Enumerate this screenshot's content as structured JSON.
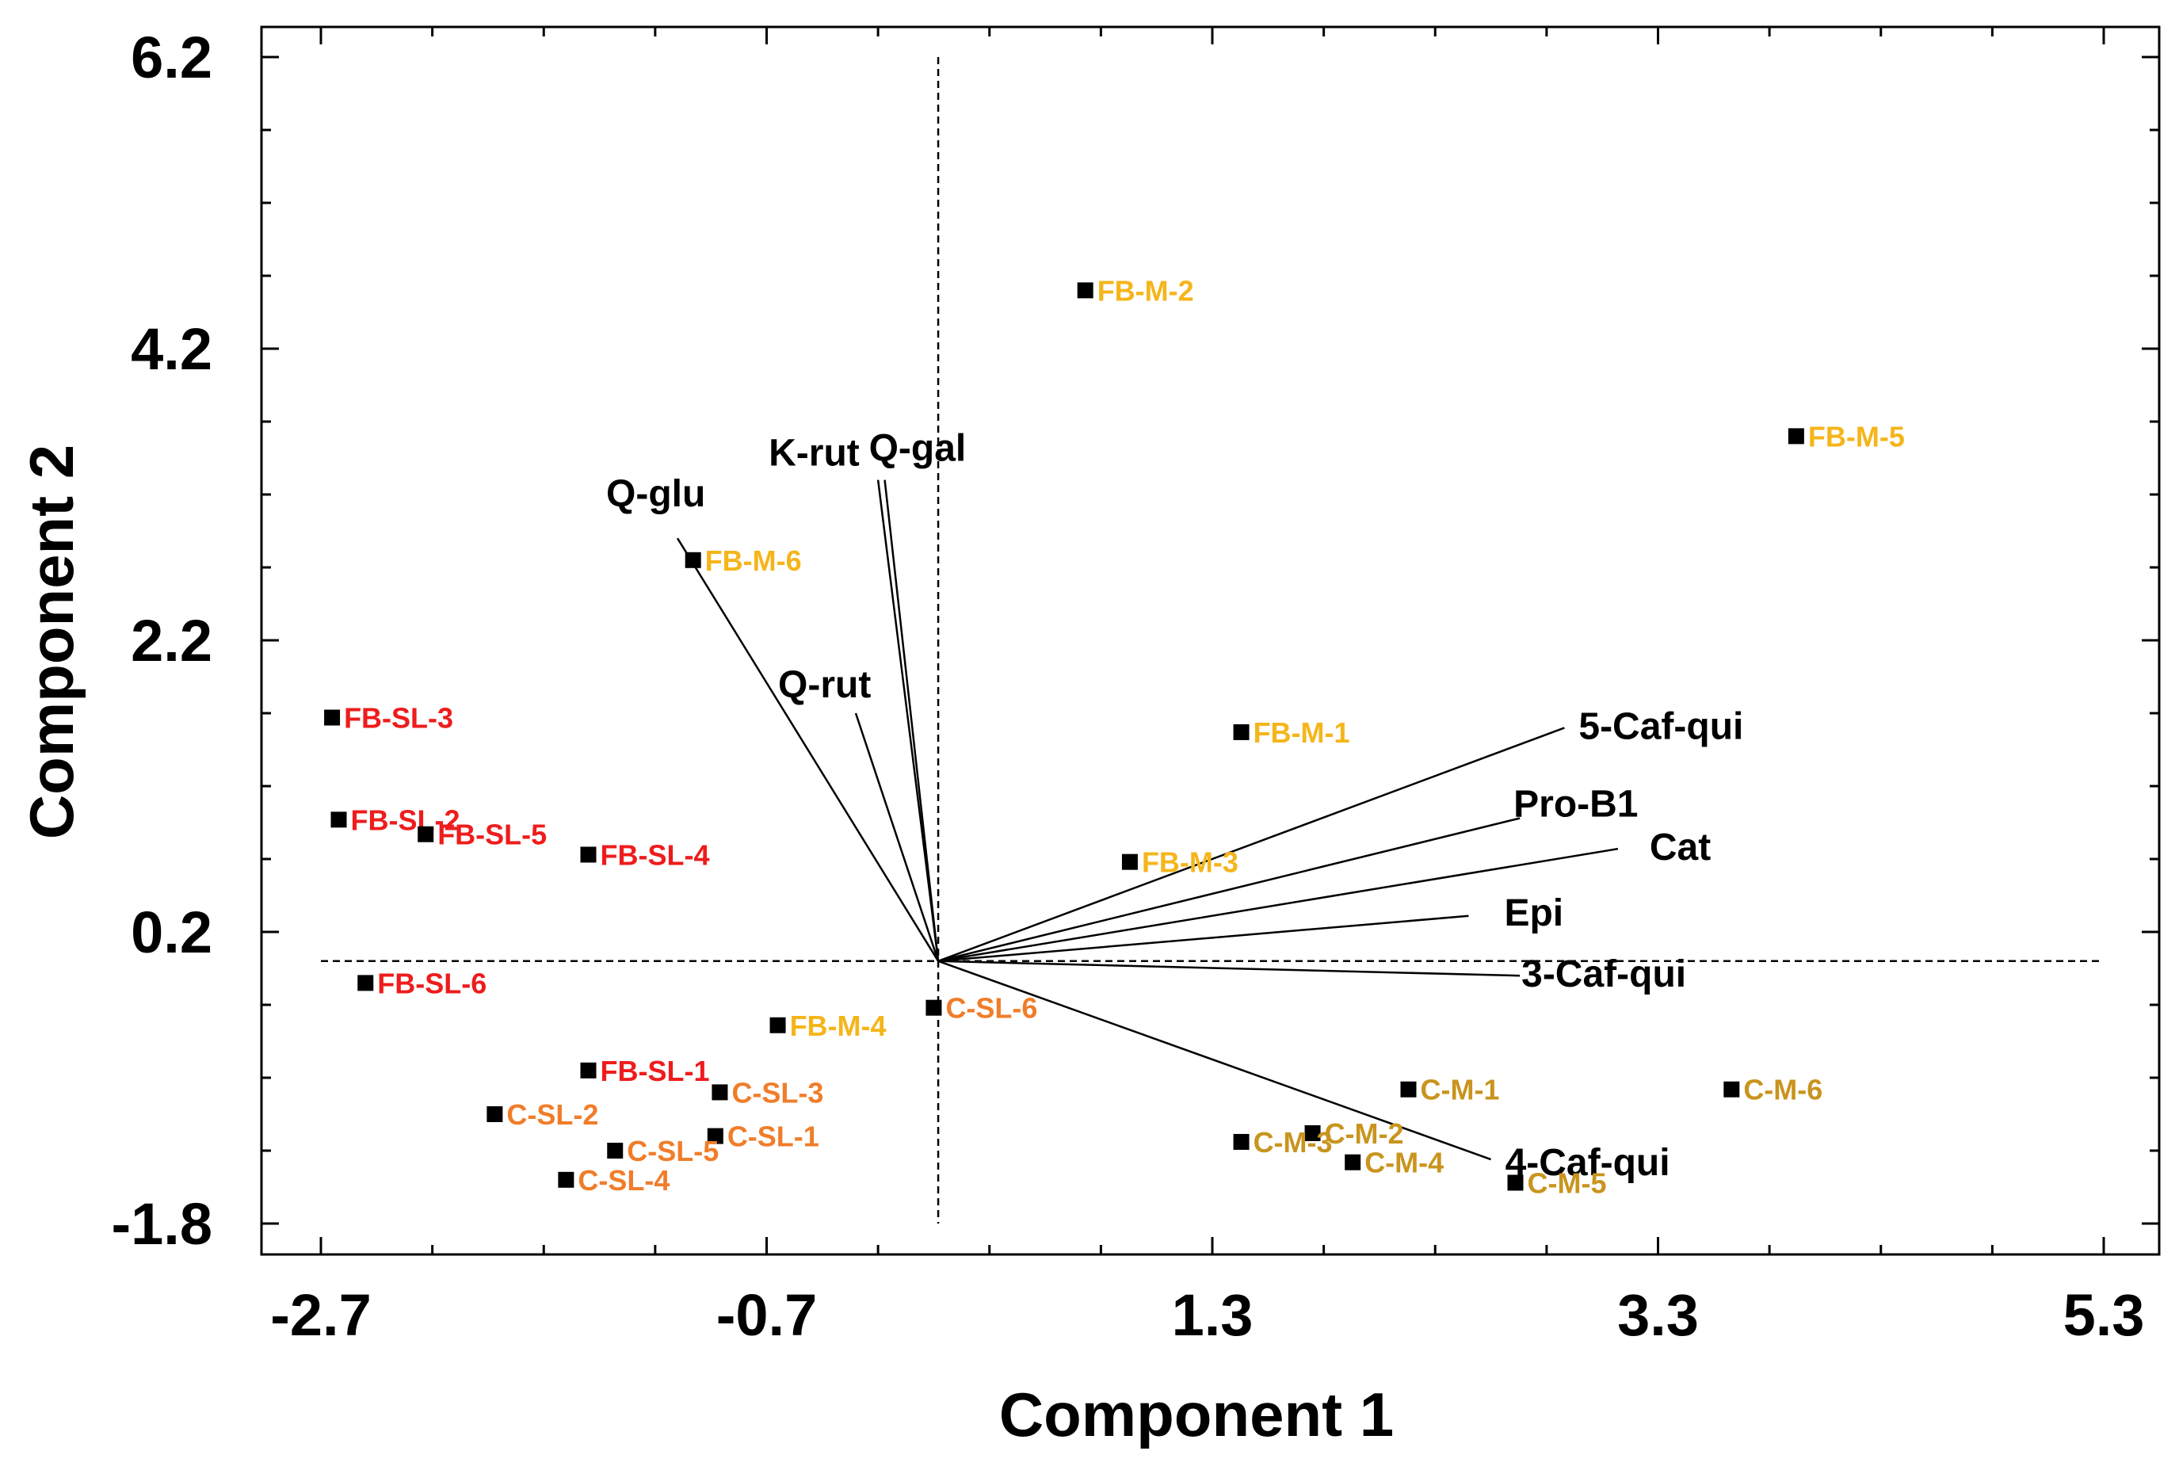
{
  "chart_data": {
    "type": "scatter",
    "subtype": "biplot",
    "title": "",
    "xlabel": "Component 1",
    "ylabel": "Component 2",
    "xlim": [
      -2.7,
      5.3
    ],
    "ylim": [
      -1.8,
      6.2
    ],
    "xticks": [
      -2.7,
      -0.7,
      1.3,
      3.3,
      5.3
    ],
    "yticks": [
      -1.8,
      0.2,
      2.2,
      4.2,
      6.2
    ],
    "xtick_labels": [
      "-2.7",
      "-0.7",
      "1.3",
      "3.3",
      "5.3"
    ],
    "ytick_labels": [
      "-1.8",
      "0.2",
      "2.2",
      "4.2",
      "6.2"
    ],
    "colors": {
      "FB-SL": "#ee1c1c",
      "FB-M": "#f5b51a",
      "C-SL": "#f07d2a",
      "C-M": "#c9941e",
      "marker": "#000000",
      "loading": "#000000"
    },
    "reference_lines": {
      "x": 0.07,
      "y": 0.0
    },
    "points": [
      {
        "label": "FB-SL-1",
        "group": "FB-SL",
        "x": -1.5,
        "y": -0.75
      },
      {
        "label": "FB-SL-2",
        "group": "FB-SL",
        "x": -2.62,
        "y": 0.97
      },
      {
        "label": "FB-SL-3",
        "group": "FB-SL",
        "x": -2.65,
        "y": 1.67
      },
      {
        "label": "FB-SL-4",
        "group": "FB-SL",
        "x": -1.5,
        "y": 0.73
      },
      {
        "label": "FB-SL-5",
        "group": "FB-SL",
        "x": -2.23,
        "y": 0.87
      },
      {
        "label": "FB-SL-6",
        "group": "FB-SL",
        "x": -2.5,
        "y": -0.15
      },
      {
        "label": "FB-M-1",
        "group": "FB-M",
        "x": 1.43,
        "y": 1.57
      },
      {
        "label": "FB-M-2",
        "group": "FB-M",
        "x": 0.73,
        "y": 4.6
      },
      {
        "label": "FB-M-3",
        "group": "FB-M",
        "x": 0.93,
        "y": 0.68
      },
      {
        "label": "FB-M-4",
        "group": "FB-M",
        "x": -0.65,
        "y": -0.44
      },
      {
        "label": "FB-M-5",
        "group": "FB-M",
        "x": 3.92,
        "y": 3.6
      },
      {
        "label": "FB-M-6",
        "group": "FB-M",
        "x": -1.03,
        "y": 2.75
      },
      {
        "label": "C-SL-1",
        "group": "C-SL",
        "x": -0.93,
        "y": -1.2
      },
      {
        "label": "C-SL-2",
        "group": "C-SL",
        "x": -1.92,
        "y": -1.05
      },
      {
        "label": "C-SL-3",
        "group": "C-SL",
        "x": -0.91,
        "y": -0.9
      },
      {
        "label": "C-SL-4",
        "group": "C-SL",
        "x": -1.6,
        "y": -1.5
      },
      {
        "label": "C-SL-5",
        "group": "C-SL",
        "x": -1.38,
        "y": -1.3
      },
      {
        "label": "C-SL-6",
        "group": "C-SL",
        "x": 0.05,
        "y": -0.32
      },
      {
        "label": "C-M-1",
        "group": "C-M",
        "x": 2.18,
        "y": -0.88
      },
      {
        "label": "C-M-2",
        "group": "C-M",
        "x": 1.75,
        "y": -1.18
      },
      {
        "label": "C-M-3",
        "group": "C-M",
        "x": 1.43,
        "y": -1.24
      },
      {
        "label": "C-M-4",
        "group": "C-M",
        "x": 1.93,
        "y": -1.38
      },
      {
        "label": "C-M-5",
        "group": "C-M",
        "x": 2.66,
        "y": -1.52
      },
      {
        "label": "C-M-6",
        "group": "C-M",
        "x": 3.63,
        "y": -0.88
      }
    ],
    "loadings": [
      {
        "label": "Q-glu",
        "x": -1.1,
        "y": 2.9
      },
      {
        "label": "K-rut",
        "x": -0.2,
        "y": 3.3
      },
      {
        "label": "Q-gal",
        "x": -0.17,
        "y": 3.3
      },
      {
        "label": "Q-rut",
        "x": -0.3,
        "y": 1.7
      },
      {
        "label": "5-Caf-qui",
        "x": 2.88,
        "y": 1.6
      },
      {
        "label": "Pro-B1",
        "x": 2.68,
        "y": 0.98
      },
      {
        "label": "Cat",
        "x": 3.12,
        "y": 0.77
      },
      {
        "label": "Epi",
        "x": 2.45,
        "y": 0.31
      },
      {
        "label": "3-Caf-qui",
        "x": 2.68,
        "y": -0.1
      },
      {
        "label": "4-Caf-qui",
        "x": 2.55,
        "y": -1.36
      }
    ]
  }
}
